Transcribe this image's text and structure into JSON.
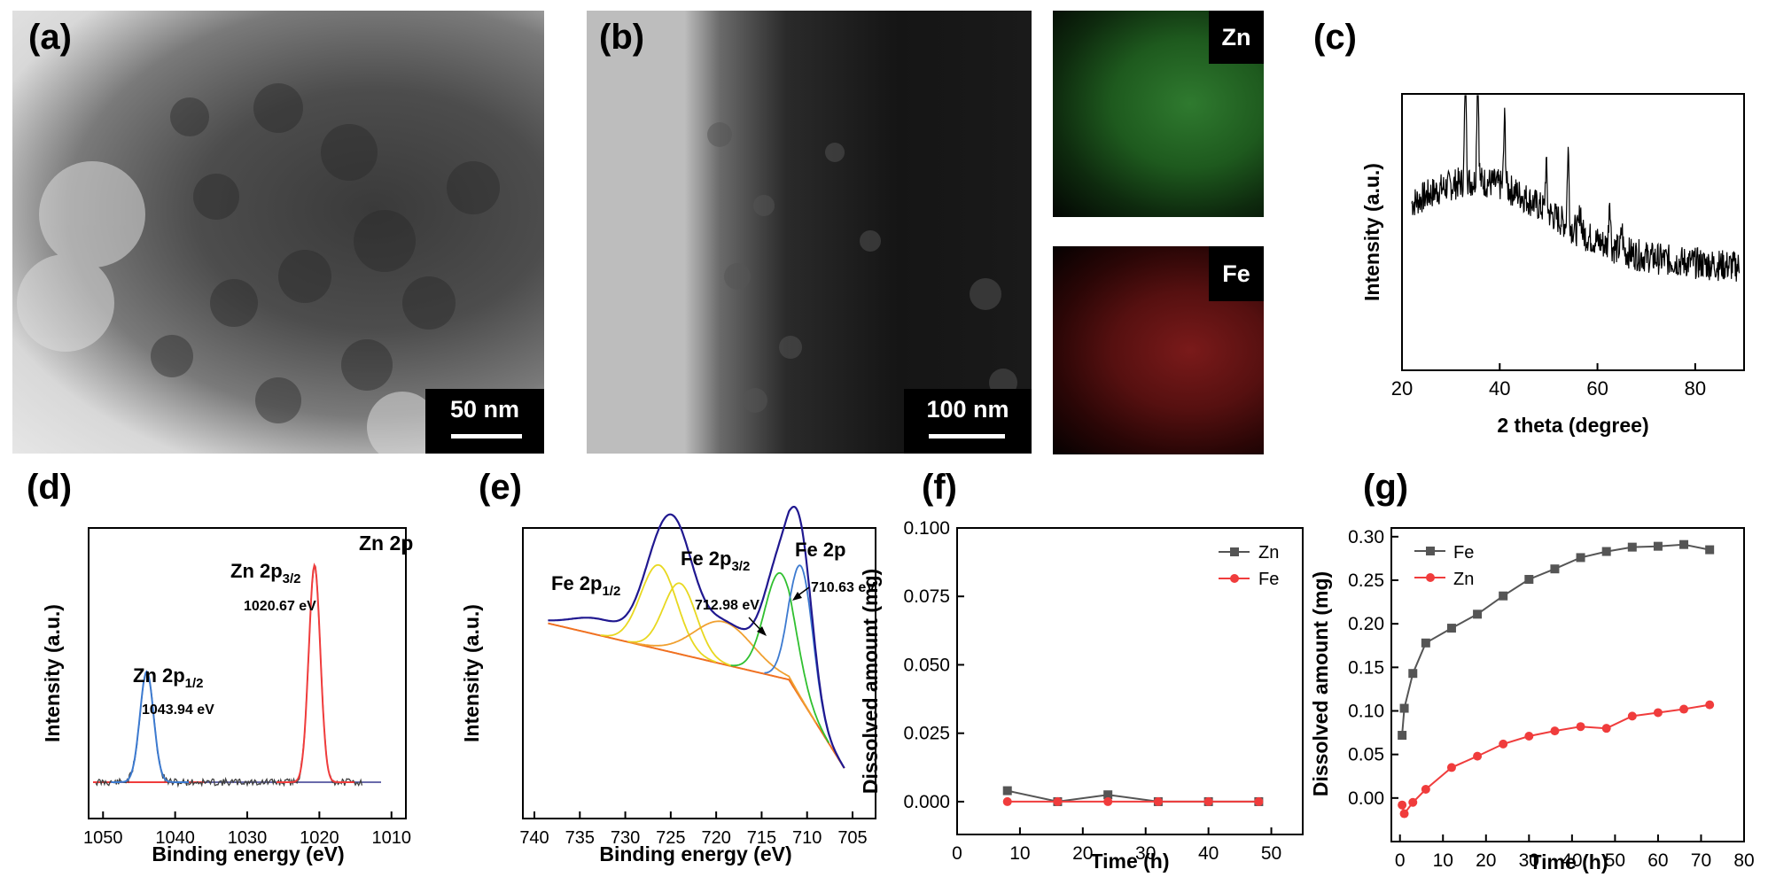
{
  "panels": {
    "a": {
      "letter": "(a)",
      "scale_label": "50 nm"
    },
    "b": {
      "letter": "(b)",
      "scale_label": "100 nm",
      "map_zn": "Zn",
      "map_fe": "Fe"
    },
    "c": {
      "letter": "(c)"
    },
    "d": {
      "letter": "(d)"
    },
    "e": {
      "letter": "(e)"
    },
    "f": {
      "letter": "(f)"
    },
    "g": {
      "letter": "(g)"
    }
  },
  "colors": {
    "zn_map": "#2ecc40",
    "fe_map": "#e02020",
    "gray_series": "#555555",
    "red_series": "#f03c3c"
  },
  "chart_data": [
    {
      "id": "c",
      "type": "line",
      "xlabel": "2 theta (degree)",
      "ylabel": "Intensity (a.u.)",
      "xlim": [
        20,
        90
      ],
      "xticks": [
        20,
        40,
        60,
        80
      ],
      "peaks": [
        33,
        35.5,
        41,
        49.5,
        54,
        62.5
      ]
    },
    {
      "id": "d",
      "type": "line",
      "xlabel": "Binding energy (eV)",
      "ylabel": "Intensity (a.u.)",
      "xlim": [
        1050,
        1010
      ],
      "xticks": [
        1050,
        1040,
        1030,
        1020,
        1010
      ],
      "annotations": {
        "title": "Zn 2p",
        "p32": "Zn 2p",
        "p32_sub": "3/2",
        "p32_ev": "1020.67 eV",
        "p12": "Zn 2p",
        "p12_sub": "1/2",
        "p12_ev": "1043.94 eV"
      },
      "peaks": [
        1043.94,
        1020.67
      ]
    },
    {
      "id": "e",
      "type": "line",
      "xlabel": "Binding energy (eV)",
      "ylabel": "Intensity (a.u.)",
      "xlim": [
        740,
        705
      ],
      "xticks": [
        740,
        735,
        730,
        725,
        720,
        715,
        710,
        705
      ],
      "annotations": {
        "title": "Fe 2p",
        "p12": "Fe 2p",
        "p12_sub": "1/2",
        "p32": "Fe 2p",
        "p32_sub": "3/2",
        "ev1": "712.98 eV",
        "ev2": "710.63 eV"
      }
    },
    {
      "id": "f",
      "type": "line",
      "xlabel": "Time (h)",
      "ylabel": "Dissolved amount (mg)",
      "xlim": [
        0,
        55
      ],
      "ylim": [
        -0.012,
        0.1
      ],
      "xticks": [
        0,
        10,
        20,
        30,
        40,
        50
      ],
      "yticks": [
        "0.000",
        "0.025",
        "0.050",
        "0.075",
        "0.100"
      ],
      "series": [
        {
          "name": "Zn",
          "x": [
            8,
            16,
            24,
            32,
            40,
            48
          ],
          "y": [
            0.004,
            0.0,
            0.0025,
            0.0,
            0.0,
            0.0
          ]
        },
        {
          "name": "Fe",
          "x": [
            8,
            16,
            24,
            32,
            40,
            48
          ],
          "y": [
            0.0,
            0.0,
            0.0,
            0.0,
            0.0,
            0.0
          ]
        }
      ]
    },
    {
      "id": "g",
      "type": "line",
      "xlabel": "Time (h)",
      "ylabel": "Dissolved amount (mg)",
      "xlim": [
        -2,
        80
      ],
      "ylim": [
        -0.05,
        0.31
      ],
      "xticks": [
        0,
        10,
        20,
        30,
        40,
        50,
        60,
        70,
        80
      ],
      "yticks": [
        "0.00",
        "0.05",
        "0.10",
        "0.15",
        "0.20",
        "0.25",
        "0.30"
      ],
      "series": [
        {
          "name": "Fe",
          "x": [
            0.5,
            1,
            3,
            6,
            12,
            18,
            24,
            30,
            36,
            42,
            48,
            54,
            60,
            66,
            72
          ],
          "y": [
            0.072,
            0.103,
            0.143,
            0.178,
            0.195,
            0.211,
            0.232,
            0.251,
            0.263,
            0.276,
            0.283,
            0.288,
            0.289,
            0.291,
            0.285
          ]
        },
        {
          "name": "Zn",
          "x": [
            0.5,
            1,
            3,
            6,
            12,
            18,
            24,
            30,
            36,
            42,
            48,
            54,
            60,
            66,
            72
          ],
          "y": [
            -0.008,
            -0.018,
            -0.005,
            0.01,
            0.035,
            0.048,
            0.062,
            0.071,
            0.077,
            0.082,
            0.08,
            0.094,
            0.098,
            0.102,
            0.107
          ]
        }
      ]
    }
  ]
}
